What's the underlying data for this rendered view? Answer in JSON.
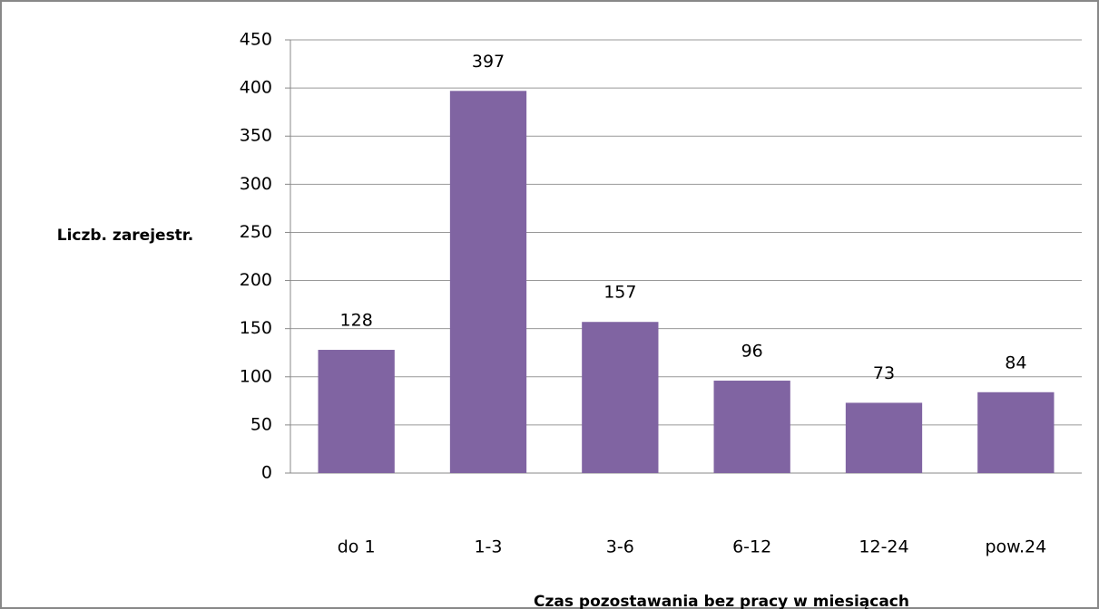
{
  "chart_data": {
    "type": "bar",
    "x_label": "Czas pozostawania bez pracy w miesiącach",
    "y_label": "Liczb. zarejestr.",
    "categories": [
      "do 1",
      "1-3",
      "3-6",
      "6-12",
      "12-24",
      "pow.24"
    ],
    "values": [
      128,
      397,
      157,
      96,
      73,
      84
    ],
    "color": "#8064a2",
    "ylim": [
      0,
      450
    ],
    "yticks": [
      0,
      50,
      100,
      150,
      200,
      250,
      300,
      350,
      400,
      450
    ],
    "grid": true
  }
}
